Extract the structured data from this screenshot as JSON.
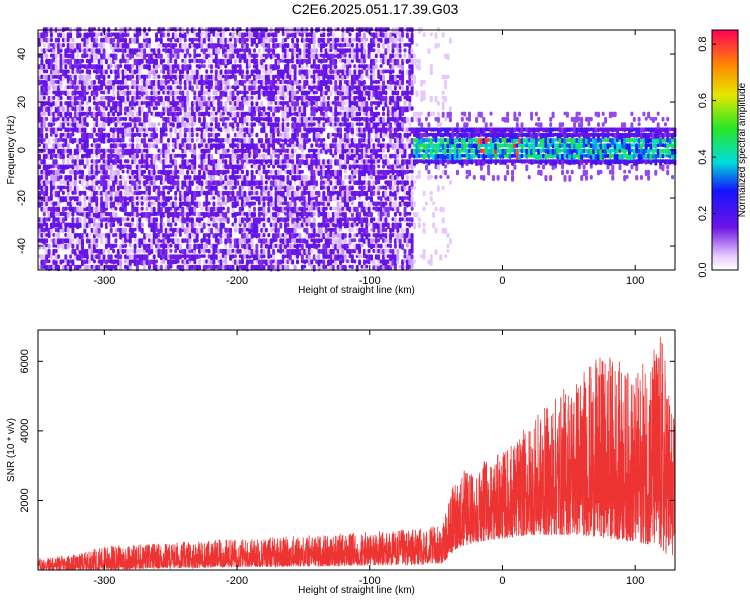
{
  "page_title": "C2E6.2025.051.17.39.G03",
  "chart_data": [
    {
      "type": "heatmap",
      "title": "C2E6.2025.051.17.39.G03",
      "xlabel": "Height of straight line (km)",
      "ylabel": "Frequency (Hz)",
      "xlim": [
        -350,
        130
      ],
      "ylim": [
        -50,
        50
      ],
      "x_ticks": [
        -300,
        -200,
        -100,
        0,
        100
      ],
      "y_ticks": [
        -40,
        -20,
        0,
        20,
        40
      ],
      "colorbar": {
        "label": "Normalized spectral amplitude",
        "range": [
          0.0,
          0.85
        ],
        "ticks": [
          "0.0",
          "0.2",
          "0.4",
          "0.6",
          "0.8"
        ]
      },
      "description_regions": [
        {
          "x_range": [
            -350,
            -68
          ],
          "y_range": [
            -50,
            50
          ],
          "amplitude": 0.1
        },
        {
          "x_range": [
            -68,
            130
          ],
          "y_range": [
            -8,
            8
          ],
          "amplitude": 0.4,
          "peak": 0.8,
          "peak_x": [
            -20,
            10
          ]
        }
      ],
      "legend": "right"
    },
    {
      "type": "line",
      "title": "",
      "xlabel": "Height of straight line (km)",
      "ylabel": "SNR (10 * v/v)",
      "xlim": [
        -350,
        130
      ],
      "ylim": [
        0,
        6900
      ],
      "x_ticks": [
        -300,
        -200,
        -100,
        0,
        100
      ],
      "y_ticks": [
        2000,
        4000,
        6000
      ],
      "color": "#ee3333",
      "envelope": {
        "x": [
          -350,
          -320,
          -300,
          -250,
          -200,
          -150,
          -100,
          -60,
          -45,
          -35,
          -20,
          0,
          20,
          40,
          60,
          80,
          100,
          115,
          120,
          130
        ],
        "y_min": [
          0,
          0,
          0,
          50,
          80,
          100,
          120,
          150,
          200,
          600,
          800,
          900,
          1000,
          1000,
          1000,
          900,
          800,
          700,
          500,
          400
        ],
        "y_max": [
          350,
          450,
          700,
          800,
          900,
          1000,
          1100,
          1200,
          1300,
          2800,
          3000,
          3400,
          4200,
          5000,
          5800,
          6300,
          5600,
          6600,
          6900,
          4200
        ]
      }
    }
  ]
}
